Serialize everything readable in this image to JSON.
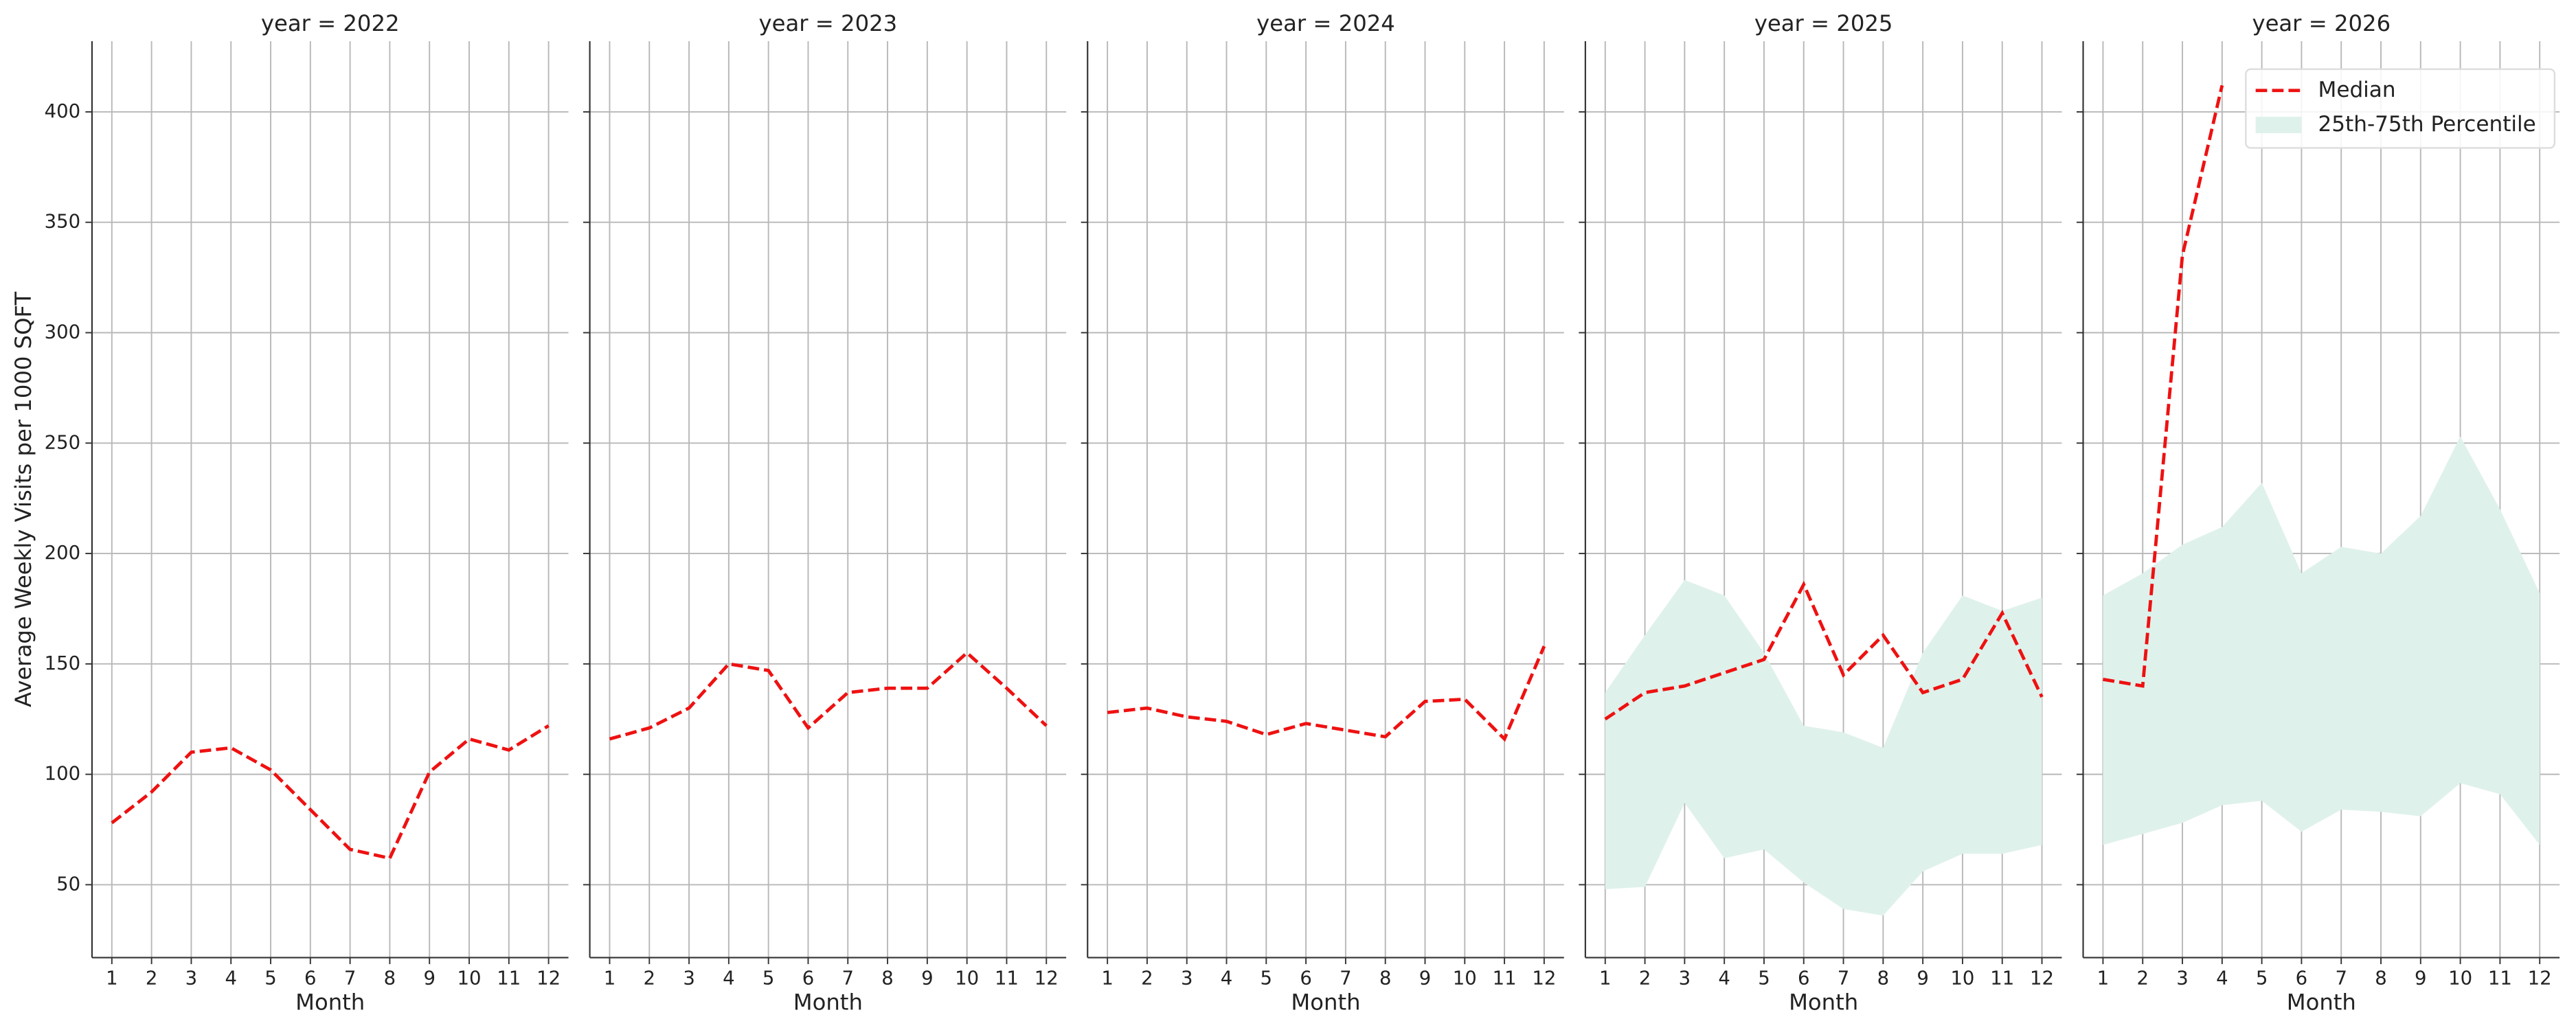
{
  "chart_data": [
    {
      "type": "line",
      "title": "year = 2022",
      "ylabel": "Average Weekly Visits per 1000 SQFT",
      "xlabel": "Month",
      "x": [
        1,
        2,
        3,
        4,
        5,
        6,
        7,
        8,
        9,
        10,
        11,
        12
      ],
      "xlim": [
        0.5,
        12.5
      ],
      "ylim": [
        17,
        432
      ],
      "yticks": [
        50,
        100,
        150,
        200,
        250,
        300,
        350,
        400
      ],
      "grid": true,
      "series": [
        {
          "color": "#ee1111",
          "values": [
            78,
            92,
            110,
            112,
            102,
            84,
            66,
            62,
            101,
            116,
            111,
            122
          ]
        }
      ]
    },
    {
      "type": "line",
      "title": "year = 2023",
      "xlabel": "Month",
      "x": [
        1,
        2,
        3,
        4,
        5,
        6,
        7,
        8,
        9,
        10,
        11,
        12
      ],
      "xlim": [
        0.5,
        12.5
      ],
      "ylim": [
        17,
        432
      ],
      "yticks": [
        50,
        100,
        150,
        200,
        250,
        300,
        350,
        400
      ],
      "grid": true,
      "series": [
        {
          "color": "#ee1111",
          "values": [
            116,
            121,
            130,
            150,
            147,
            121,
            137,
            139,
            139,
            155,
            139,
            122
          ]
        }
      ]
    },
    {
      "type": "line",
      "title": "year = 2024",
      "xlabel": "Month",
      "x": [
        1,
        2,
        3,
        4,
        5,
        6,
        7,
        8,
        9,
        10,
        11,
        12
      ],
      "xlim": [
        0.5,
        12.5
      ],
      "ylim": [
        17,
        432
      ],
      "yticks": [
        50,
        100,
        150,
        200,
        250,
        300,
        350,
        400
      ],
      "grid": true,
      "series": [
        {
          "color": "#ee1111",
          "values": [
            128,
            130,
            126,
            124,
            118,
            123,
            120,
            117,
            133,
            134,
            116,
            158
          ]
        }
      ]
    },
    {
      "type": "line",
      "title": "year = 2025",
      "xlabel": "Month",
      "x": [
        1,
        2,
        3,
        4,
        5,
        6,
        7,
        8,
        9,
        10,
        11,
        12
      ],
      "xlim": [
        0.5,
        12.5
      ],
      "ylim": [
        17,
        432
      ],
      "yticks": [
        50,
        100,
        150,
        200,
        250,
        300,
        350,
        400
      ],
      "grid": true,
      "series": [
        {
          "color": "#ee1111",
          "values": [
            125,
            137,
            140,
            146,
            152,
            186,
            145,
            163,
            137,
            143,
            173,
            135
          ]
        }
      ],
      "band": {
        "color": "#dff1eb",
        "lower": [
          48,
          49,
          87,
          62,
          66,
          51,
          39,
          36,
          56,
          64,
          64,
          68
        ],
        "upper": [
          137,
          163,
          188,
          181,
          155,
          122,
          119,
          112,
          155,
          181,
          174,
          180
        ]
      }
    },
    {
      "type": "line",
      "title": "year = 2026",
      "xlabel": "Month",
      "x": [
        1,
        2,
        3,
        4,
        5,
        6,
        7,
        8,
        9,
        10,
        11,
        12
      ],
      "xlim": [
        0.5,
        12.5
      ],
      "ylim": [
        17,
        432
      ],
      "yticks": [
        50,
        100,
        150,
        200,
        250,
        300,
        350,
        400
      ],
      "grid": true,
      "series": [
        {
          "name": "Median",
          "color": "#ee1111",
          "values": [
            143,
            140,
            335,
            412,
            null,
            null,
            null,
            null,
            null,
            null,
            null,
            null
          ]
        }
      ],
      "band": {
        "name": "25th-75th Percentile",
        "color": "#dff1eb",
        "lower": [
          68,
          73,
          78,
          86,
          88,
          74,
          84,
          83,
          81,
          96,
          91,
          68
        ],
        "upper": [
          181,
          191,
          204,
          212,
          232,
          191,
          203,
          200,
          217,
          253,
          220,
          182
        ]
      },
      "legend": "upper right"
    }
  ]
}
